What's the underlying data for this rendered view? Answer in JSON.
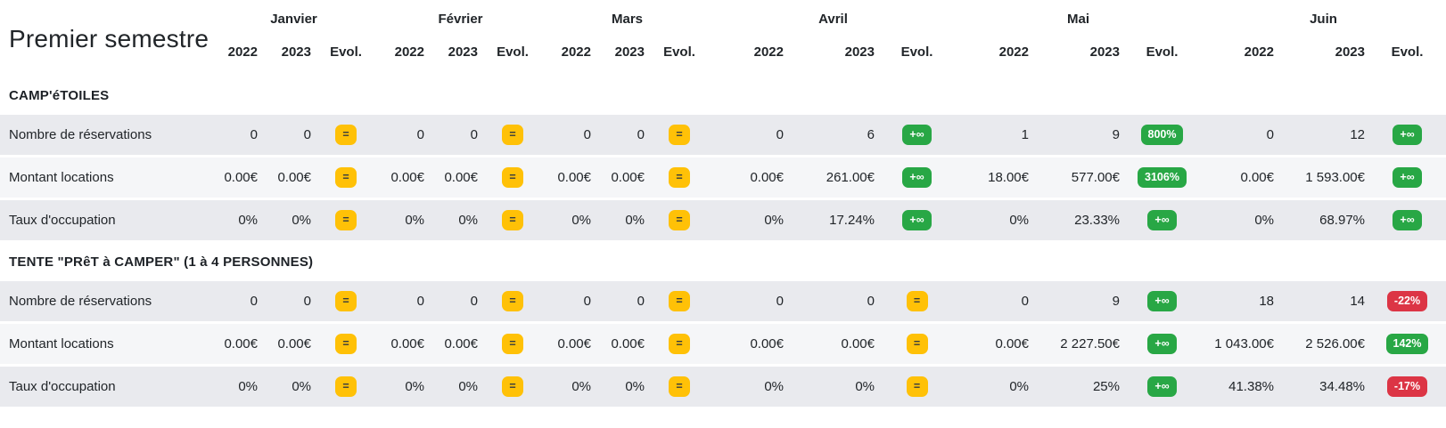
{
  "title": "Premier semestre",
  "months": [
    "Janvier",
    "Février",
    "Mars",
    "Avril",
    "Mai",
    "Juin"
  ],
  "column_headers": {
    "year1": "2022",
    "year2": "2023",
    "evol": "Evol."
  },
  "colors": {
    "badge_equal": "#ffc107",
    "badge_up": "#28a745",
    "badge_down": "#dc3545",
    "row_gray": "#e9eaee",
    "row_light": "#f5f6f8",
    "text": "#212529"
  },
  "sections": [
    {
      "name": "CAMP'éTOILES",
      "rows": [
        {
          "label": "Nombre de réservations",
          "cells": [
            {
              "y1": "0",
              "y2": "0",
              "evol": "=",
              "trend": "equal"
            },
            {
              "y1": "0",
              "y2": "0",
              "evol": "=",
              "trend": "equal"
            },
            {
              "y1": "0",
              "y2": "0",
              "evol": "=",
              "trend": "equal"
            },
            {
              "y1": "0",
              "y2": "6",
              "evol": "+∞",
              "trend": "up"
            },
            {
              "y1": "1",
              "y2": "9",
              "evol": "800%",
              "trend": "up"
            },
            {
              "y1": "0",
              "y2": "12",
              "evol": "+∞",
              "trend": "up"
            }
          ]
        },
        {
          "label": "Montant locations",
          "cells": [
            {
              "y1": "0.00€",
              "y2": "0.00€",
              "evol": "=",
              "trend": "equal"
            },
            {
              "y1": "0.00€",
              "y2": "0.00€",
              "evol": "=",
              "trend": "equal"
            },
            {
              "y1": "0.00€",
              "y2": "0.00€",
              "evol": "=",
              "trend": "equal"
            },
            {
              "y1": "0.00€",
              "y2": "261.00€",
              "evol": "+∞",
              "trend": "up"
            },
            {
              "y1": "18.00€",
              "y2": "577.00€",
              "evol": "3106%",
              "trend": "up"
            },
            {
              "y1": "0.00€",
              "y2": "1 593.00€",
              "evol": "+∞",
              "trend": "up"
            }
          ]
        },
        {
          "label": "Taux d'occupation",
          "cells": [
            {
              "y1": "0%",
              "y2": "0%",
              "evol": "=",
              "trend": "equal"
            },
            {
              "y1": "0%",
              "y2": "0%",
              "evol": "=",
              "trend": "equal"
            },
            {
              "y1": "0%",
              "y2": "0%",
              "evol": "=",
              "trend": "equal"
            },
            {
              "y1": "0%",
              "y2": "17.24%",
              "evol": "+∞",
              "trend": "up"
            },
            {
              "y1": "0%",
              "y2": "23.33%",
              "evol": "+∞",
              "trend": "up"
            },
            {
              "y1": "0%",
              "y2": "68.97%",
              "evol": "+∞",
              "trend": "up"
            }
          ]
        }
      ]
    },
    {
      "name": "TENTE \"PRêT à CAMPER\" (1 à 4 PERSONNES)",
      "rows": [
        {
          "label": "Nombre de réservations",
          "cells": [
            {
              "y1": "0",
              "y2": "0",
              "evol": "=",
              "trend": "equal"
            },
            {
              "y1": "0",
              "y2": "0",
              "evol": "=",
              "trend": "equal"
            },
            {
              "y1": "0",
              "y2": "0",
              "evol": "=",
              "trend": "equal"
            },
            {
              "y1": "0",
              "y2": "0",
              "evol": "=",
              "trend": "equal"
            },
            {
              "y1": "0",
              "y2": "9",
              "evol": "+∞",
              "trend": "up"
            },
            {
              "y1": "18",
              "y2": "14",
              "evol": "-22%",
              "trend": "down"
            }
          ]
        },
        {
          "label": "Montant locations",
          "cells": [
            {
              "y1": "0.00€",
              "y2": "0.00€",
              "evol": "=",
              "trend": "equal"
            },
            {
              "y1": "0.00€",
              "y2": "0.00€",
              "evol": "=",
              "trend": "equal"
            },
            {
              "y1": "0.00€",
              "y2": "0.00€",
              "evol": "=",
              "trend": "equal"
            },
            {
              "y1": "0.00€",
              "y2": "0.00€",
              "evol": "=",
              "trend": "equal"
            },
            {
              "y1": "0.00€",
              "y2": "2 227.50€",
              "evol": "+∞",
              "trend": "up"
            },
            {
              "y1": "1 043.00€",
              "y2": "2 526.00€",
              "evol": "142%",
              "trend": "up"
            }
          ]
        },
        {
          "label": "Taux d'occupation",
          "cells": [
            {
              "y1": "0%",
              "y2": "0%",
              "evol": "=",
              "trend": "equal"
            },
            {
              "y1": "0%",
              "y2": "0%",
              "evol": "=",
              "trend": "equal"
            },
            {
              "y1": "0%",
              "y2": "0%",
              "evol": "=",
              "trend": "equal"
            },
            {
              "y1": "0%",
              "y2": "0%",
              "evol": "=",
              "trend": "equal"
            },
            {
              "y1": "0%",
              "y2": "25%",
              "evol": "+∞",
              "trend": "up"
            },
            {
              "y1": "41.38%",
              "y2": "34.48%",
              "evol": "-17%",
              "trend": "down"
            }
          ]
        }
      ]
    }
  ]
}
